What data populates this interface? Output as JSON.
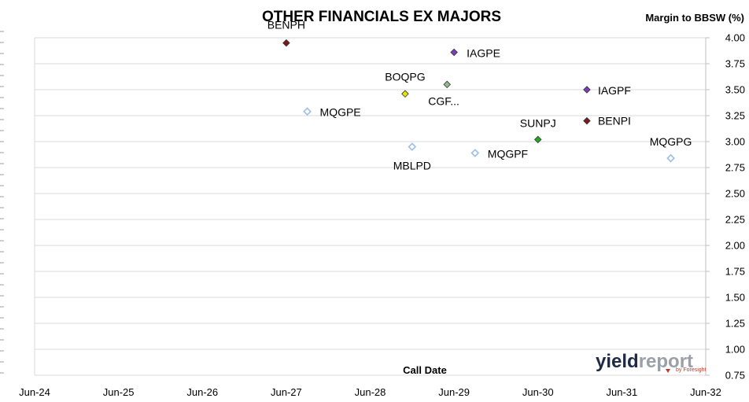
{
  "chart_data": {
    "type": "scatter",
    "title": "OTHER FINANCIALS EX MAJORS",
    "xlabel": "Call Date",
    "ylabel": "Margin to BBSW (%)",
    "x_ticks": [
      "Jun-24",
      "Jun-25",
      "Jun-26",
      "Jun-27",
      "Jun-28",
      "Jun-29",
      "Jun-30",
      "Jun-31",
      "Jun-32"
    ],
    "xlim": [
      "2024-06",
      "2032-06"
    ],
    "ylim": [
      0.75,
      4.0
    ],
    "y_ticks": [
      "0.75",
      "1.00",
      "1.25",
      "1.50",
      "1.75",
      "2.00",
      "2.25",
      "2.50",
      "2.75",
      "3.00",
      "3.25",
      "3.50",
      "3.75",
      "4.00"
    ],
    "grid": "horizontal",
    "points": [
      {
        "name": "BENPH",
        "x": "2027-06",
        "y": 3.95,
        "color": "#7b1a1a",
        "style": "filled"
      },
      {
        "name": "IAGPE",
        "x": "2029-06",
        "y": 3.86,
        "color": "#7b3fb5",
        "style": "filled"
      },
      {
        "name": "CGF...",
        "x": "2029-05",
        "y": 3.55,
        "color": "#8fb98f",
        "style": "filled"
      },
      {
        "name": "BOQPG",
        "x": "2028-11",
        "y": 3.46,
        "color": "#e6e600",
        "style": "filled"
      },
      {
        "name": "IAGPF",
        "x": "2031-01",
        "y": 3.5,
        "color": "#7b3fb5",
        "style": "filled"
      },
      {
        "name": "MQGPE",
        "x": "2027-09",
        "y": 3.29,
        "color": "#9bbde6",
        "style": "open"
      },
      {
        "name": "BENPI",
        "x": "2031-01",
        "y": 3.2,
        "color": "#7b1a1a",
        "style": "filled"
      },
      {
        "name": "SUNPJ",
        "x": "2030-06",
        "y": 3.02,
        "color": "#22aa22",
        "style": "filled"
      },
      {
        "name": "MBLPD",
        "x": "2028-12",
        "y": 2.95,
        "color": "#9bbde6",
        "style": "open"
      },
      {
        "name": "MQGPF",
        "x": "2029-09",
        "y": 2.89,
        "color": "#9bbde6",
        "style": "open"
      },
      {
        "name": "MQGPG",
        "x": "2032-01",
        "y": 2.84,
        "color": "#9bbde6",
        "style": "open"
      }
    ]
  },
  "branding": {
    "logo_main": "yield",
    "logo_second": "report",
    "logo_sub": "by Foresight"
  }
}
